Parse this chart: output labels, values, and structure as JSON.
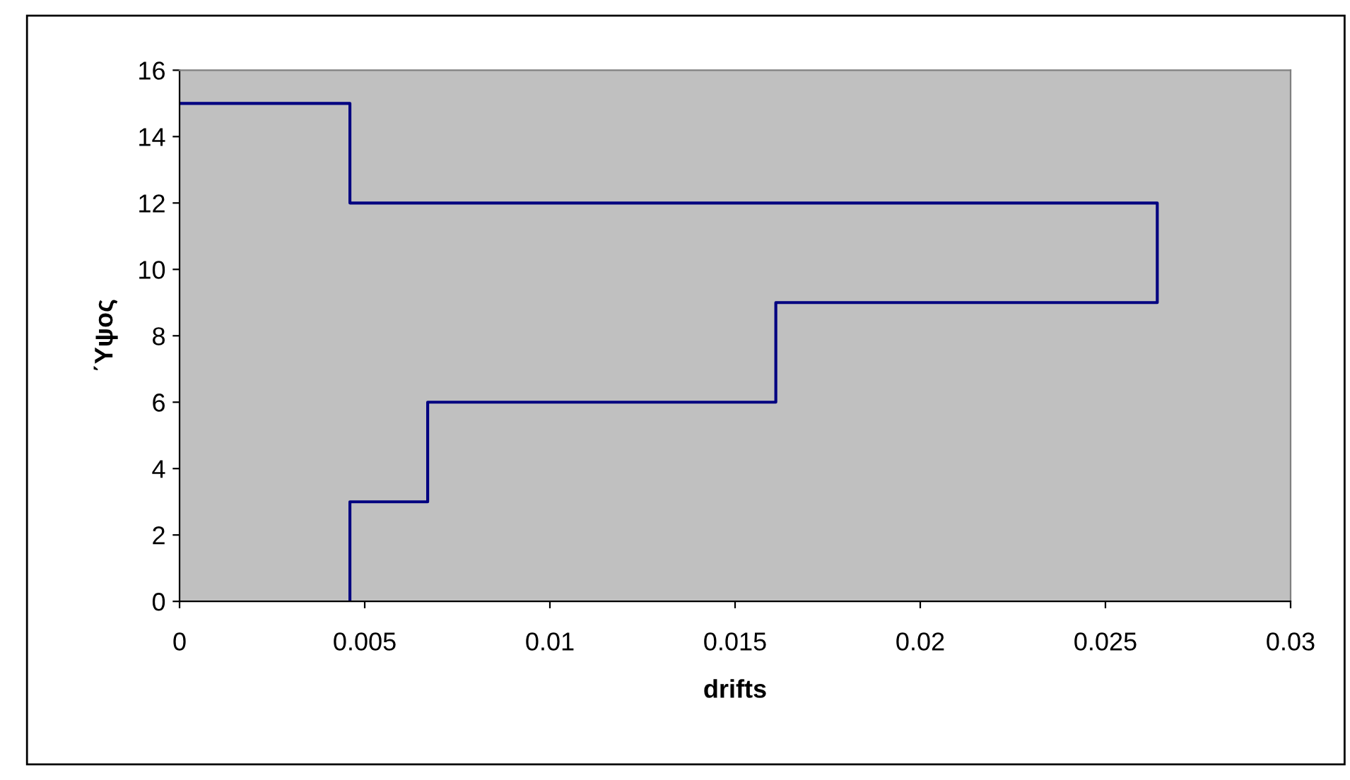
{
  "chart_data": {
    "type": "line",
    "xlabel": "drifts",
    "ylabel": "΄Υψος",
    "x": [
      0.0046,
      0.0046,
      0.0067,
      0.0067,
      0.0161,
      0.0161,
      0.0264,
      0.0264,
      0.0046,
      0.0046,
      0
    ],
    "series": [
      {
        "color": "#000080",
        "values": [
          0,
          3,
          3,
          6,
          6,
          9,
          9,
          12,
          12,
          15,
          15
        ]
      }
    ],
    "xlim": [
      0,
      0.03
    ],
    "xticks": [
      0,
      0.005,
      0.01,
      0.015,
      0.02,
      0.025,
      0.03
    ],
    "ylim": [
      0,
      16
    ],
    "yticks": [
      0,
      2,
      4,
      6,
      8,
      10,
      12,
      14,
      16
    ],
    "grid": false,
    "legend": false,
    "marker": "none",
    "line_style": "solid"
  }
}
